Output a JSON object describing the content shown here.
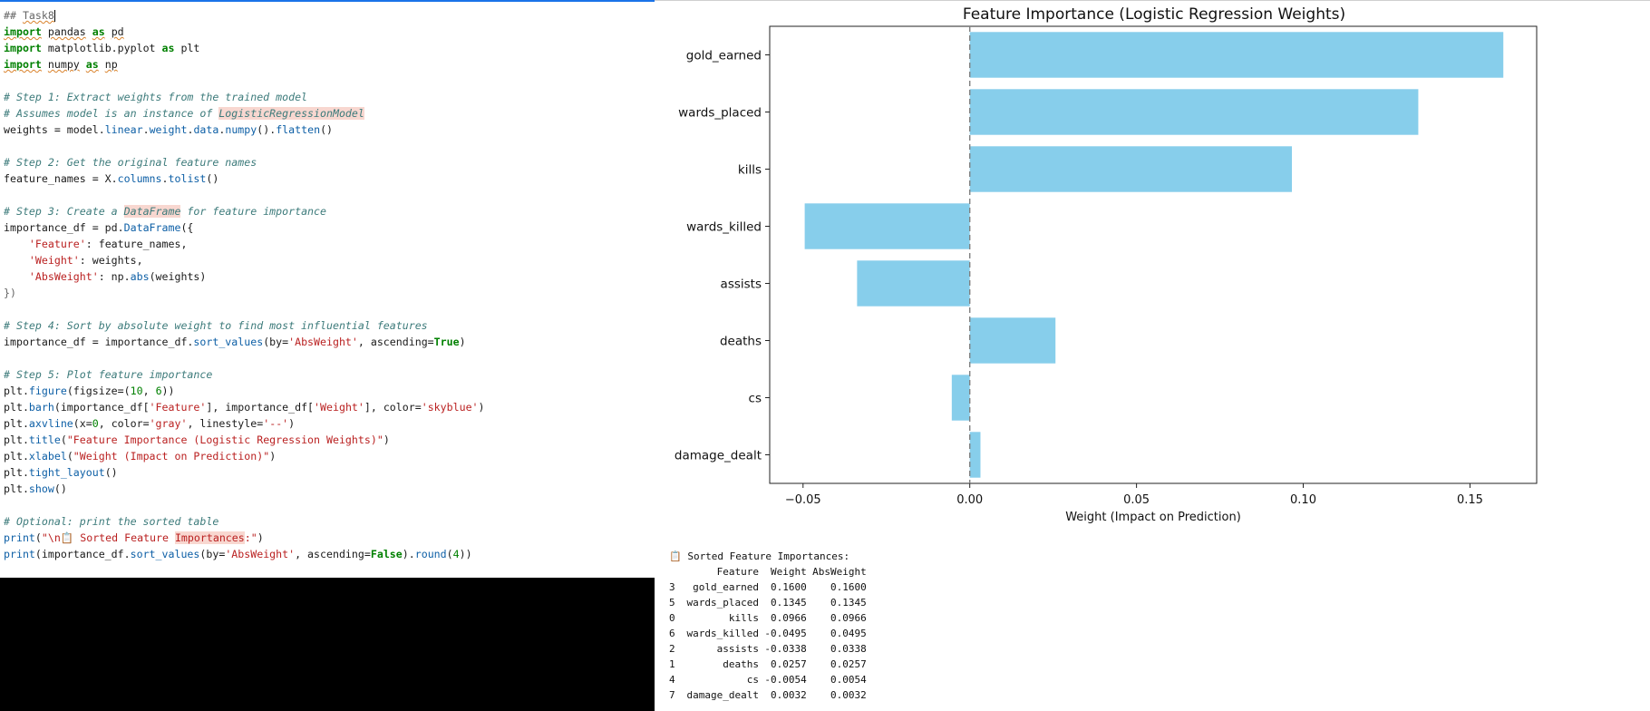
{
  "editor": {
    "lines": [
      [
        {
          "t": "## ",
          "c": "md"
        },
        {
          "t": "Task8",
          "c": "md squig"
        }
      ],
      [
        {
          "t": "import",
          "c": "k squig"
        },
        {
          "t": " "
        },
        {
          "t": "pandas",
          "c": "squig"
        },
        {
          "t": " "
        },
        {
          "t": "as",
          "c": "k squig"
        },
        {
          "t": " "
        },
        {
          "t": "pd",
          "c": "squig"
        }
      ],
      [
        {
          "t": "import",
          "c": "k"
        },
        {
          "t": " matplotlib.pyplot "
        },
        {
          "t": "as",
          "c": "k"
        },
        {
          "t": " plt"
        }
      ],
      [
        {
          "t": "import",
          "c": "k squig"
        },
        {
          "t": " "
        },
        {
          "t": "numpy",
          "c": "squig"
        },
        {
          "t": " "
        },
        {
          "t": "as",
          "c": "k squig"
        },
        {
          "t": " "
        },
        {
          "t": "np",
          "c": "squig"
        }
      ],
      [],
      [
        {
          "t": "# Step 1: Extract weights from the trained model",
          "c": "c"
        }
      ],
      [
        {
          "t": "# Assumes model is an instance of ",
          "c": "c"
        },
        {
          "t": "LogisticRegressionModel",
          "c": "hl-c c"
        }
      ],
      [
        {
          "t": "weights = model."
        },
        {
          "t": "linear",
          "c": "f"
        },
        {
          "t": "."
        },
        {
          "t": "weight",
          "c": "f"
        },
        {
          "t": "."
        },
        {
          "t": "data",
          "c": "f"
        },
        {
          "t": "."
        },
        {
          "t": "numpy",
          "c": "f"
        },
        {
          "t": "()."
        },
        {
          "t": "flatten",
          "c": "f"
        },
        {
          "t": "()"
        }
      ],
      [],
      [
        {
          "t": "# Step 2: Get the original feature names",
          "c": "c"
        }
      ],
      [
        {
          "t": "feature_names = X."
        },
        {
          "t": "columns",
          "c": "f"
        },
        {
          "t": "."
        },
        {
          "t": "tolist",
          "c": "f"
        },
        {
          "t": "()"
        }
      ],
      [],
      [
        {
          "t": "# Step 3: Create a ",
          "c": "c"
        },
        {
          "t": "DataFrame",
          "c": "hl-c c"
        },
        {
          "t": " for feature importance",
          "c": "c"
        }
      ],
      [
        {
          "t": "importance_df = pd."
        },
        {
          "t": "DataFrame",
          "c": "f"
        },
        {
          "t": "({"
        }
      ],
      [
        {
          "t": "    "
        },
        {
          "t": "'Feature'",
          "c": "s"
        },
        {
          "t": ": feature_names,"
        }
      ],
      [
        {
          "t": "    "
        },
        {
          "t": "'Weight'",
          "c": "s"
        },
        {
          "t": ": weights,"
        }
      ],
      [
        {
          "t": "    "
        },
        {
          "t": "'AbsWeight'",
          "c": "s"
        },
        {
          "t": ": np."
        },
        {
          "t": "abs",
          "c": "f"
        },
        {
          "t": "(weights)"
        }
      ],
      [
        {
          "t": "})",
          "c": "md"
        }
      ],
      [],
      [
        {
          "t": "# Step 4: Sort by absolute weight to find most influential features",
          "c": "c"
        }
      ],
      [
        {
          "t": "importance_df = importance_df."
        },
        {
          "t": "sort_values",
          "c": "f"
        },
        {
          "t": "(by="
        },
        {
          "t": "'AbsWeight'",
          "c": "s"
        },
        {
          "t": ", ascending="
        },
        {
          "t": "True",
          "c": "n"
        },
        {
          "t": ")"
        }
      ],
      [],
      [
        {
          "t": "# Step 5: Plot feature importance",
          "c": "c"
        }
      ],
      [
        {
          "t": "plt."
        },
        {
          "t": "figure",
          "c": "f"
        },
        {
          "t": "(figsize=("
        },
        {
          "t": "10",
          "c": "num"
        },
        {
          "t": ", "
        },
        {
          "t": "6",
          "c": "num"
        },
        {
          "t": "))"
        }
      ],
      [
        {
          "t": "plt."
        },
        {
          "t": "barh",
          "c": "f"
        },
        {
          "t": "(importance_df["
        },
        {
          "t": "'Feature'",
          "c": "s"
        },
        {
          "t": "], importance_df["
        },
        {
          "t": "'Weight'",
          "c": "s"
        },
        {
          "t": "], color="
        },
        {
          "t": "'skyblue'",
          "c": "s"
        },
        {
          "t": ")"
        }
      ],
      [
        {
          "t": "plt."
        },
        {
          "t": "axvline",
          "c": "f"
        },
        {
          "t": "(x="
        },
        {
          "t": "0",
          "c": "num"
        },
        {
          "t": ", color="
        },
        {
          "t": "'gray'",
          "c": "s"
        },
        {
          "t": ", linestyle="
        },
        {
          "t": "'--'",
          "c": "s"
        },
        {
          "t": ")"
        }
      ],
      [
        {
          "t": "plt."
        },
        {
          "t": "title",
          "c": "f"
        },
        {
          "t": "("
        },
        {
          "t": "\"Feature Importance (Logistic Regression Weights)\"",
          "c": "s"
        },
        {
          "t": ")"
        }
      ],
      [
        {
          "t": "plt."
        },
        {
          "t": "xlabel",
          "c": "f"
        },
        {
          "t": "("
        },
        {
          "t": "\"Weight (Impact on Prediction)\"",
          "c": "s"
        },
        {
          "t": ")"
        }
      ],
      [
        {
          "t": "plt."
        },
        {
          "t": "tight_layout",
          "c": "f"
        },
        {
          "t": "()"
        }
      ],
      [
        {
          "t": "plt."
        },
        {
          "t": "show",
          "c": "f"
        },
        {
          "t": "()"
        }
      ],
      [],
      [
        {
          "t": "# Optional: print the sorted table",
          "c": "c"
        }
      ],
      [
        {
          "t": "print",
          "c": "f"
        },
        {
          "t": "("
        },
        {
          "t": "\"\\n📋 Sorted Feature ",
          "c": "s"
        },
        {
          "t": "Importances",
          "c": "s hl"
        },
        {
          "t": ":\"",
          "c": "s"
        },
        {
          "t": ")"
        }
      ],
      [
        {
          "t": "print",
          "c": "f"
        },
        {
          "t": "(importance_df."
        },
        {
          "t": "sort_values",
          "c": "f"
        },
        {
          "t": "(by="
        },
        {
          "t": "'AbsWeight'",
          "c": "s"
        },
        {
          "t": ", ascending="
        },
        {
          "t": "False",
          "c": "n"
        },
        {
          "t": ")."
        },
        {
          "t": "round",
          "c": "f"
        },
        {
          "t": "("
        },
        {
          "t": "4",
          "c": "num"
        },
        {
          "t": "))"
        }
      ]
    ]
  },
  "colors": {
    "bar": "#87ceeb",
    "zero_line": "#808080"
  },
  "chart_data": {
    "type": "bar",
    "orientation": "horizontal",
    "title": "Feature Importance (Logistic Regression Weights)",
    "xlabel": "Weight (Impact on Prediction)",
    "ylabel": "",
    "categories": [
      "gold_earned",
      "wards_placed",
      "kills",
      "wards_killed",
      "assists",
      "deaths",
      "cs",
      "damage_dealt"
    ],
    "values": [
      0.16,
      0.1345,
      0.0966,
      -0.0495,
      -0.0338,
      0.0257,
      -0.0054,
      0.0032
    ],
    "xlim": [
      -0.06,
      0.17
    ],
    "xticks": [
      -0.05,
      0.0,
      0.05,
      0.1,
      0.15
    ],
    "xtick_labels": [
      "−0.05",
      "0.00",
      "0.05",
      "0.10",
      "0.15"
    ],
    "reference_line": {
      "x": 0,
      "style": "dashed"
    }
  },
  "printout": {
    "heading": "📋 Sorted Feature Importances:",
    "columns": [
      "Feature",
      "Weight",
      "AbsWeight"
    ],
    "rows": [
      {
        "idx": "3",
        "feature": "gold_earned",
        "weight": "0.1600",
        "abs": "0.1600"
      },
      {
        "idx": "5",
        "feature": "wards_placed",
        "weight": "0.1345",
        "abs": "0.1345"
      },
      {
        "idx": "0",
        "feature": "kills",
        "weight": "0.0966",
        "abs": "0.0966"
      },
      {
        "idx": "6",
        "feature": "wards_killed",
        "weight": "-0.0495",
        "abs": "0.0495"
      },
      {
        "idx": "2",
        "feature": "assists",
        "weight": "-0.0338",
        "abs": "0.0338"
      },
      {
        "idx": "1",
        "feature": "deaths",
        "weight": "0.0257",
        "abs": "0.0257"
      },
      {
        "idx": "4",
        "feature": "cs",
        "weight": "-0.0054",
        "abs": "0.0054"
      },
      {
        "idx": "7",
        "feature": "damage_dealt",
        "weight": "0.0032",
        "abs": "0.0032"
      }
    ]
  }
}
